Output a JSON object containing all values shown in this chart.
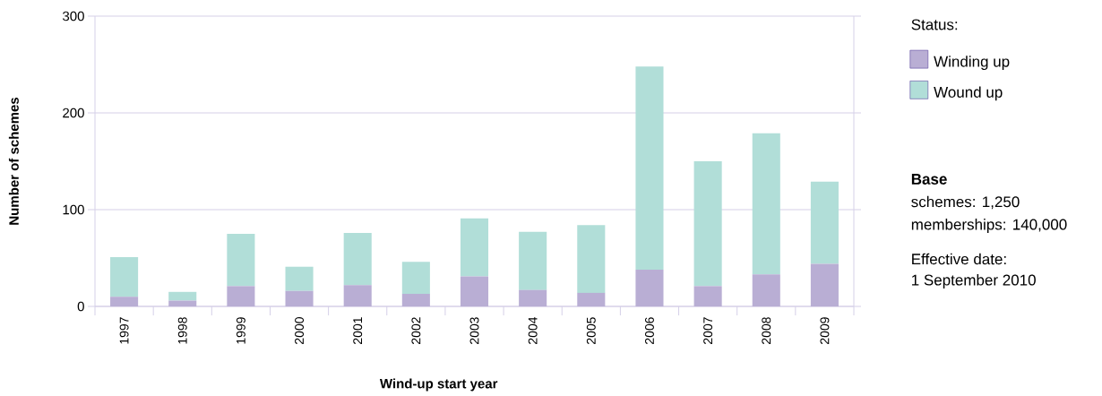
{
  "chart_data": {
    "type": "bar",
    "stacked": true,
    "categories": [
      "1997",
      "1998",
      "1999",
      "2000",
      "2001",
      "2002",
      "2003",
      "2004",
      "2005",
      "2006",
      "2007",
      "2008",
      "2009"
    ],
    "series": [
      {
        "name": "Winding up",
        "color": "#b9aed4",
        "values": [
          10,
          6,
          21,
          16,
          22,
          13,
          31,
          17,
          14,
          38,
          21,
          33,
          44
        ]
      },
      {
        "name": "Wound up",
        "color": "#b1ded8",
        "values": [
          41,
          9,
          54,
          25,
          54,
          33,
          60,
          60,
          70,
          210,
          129,
          146,
          85
        ]
      }
    ],
    "xlabel": "Wind-up start year",
    "ylabel": "Number of schemes",
    "ylim": [
      0,
      300
    ],
    "yticks": [
      0,
      100,
      200,
      300
    ],
    "grid": "y",
    "legend": "top right",
    "legend_title": "Status:",
    "annotations": [
      "Base",
      "schemes: 1,250",
      "memberships: 140,000",
      "Effective date:",
      "1 September 2010"
    ]
  }
}
